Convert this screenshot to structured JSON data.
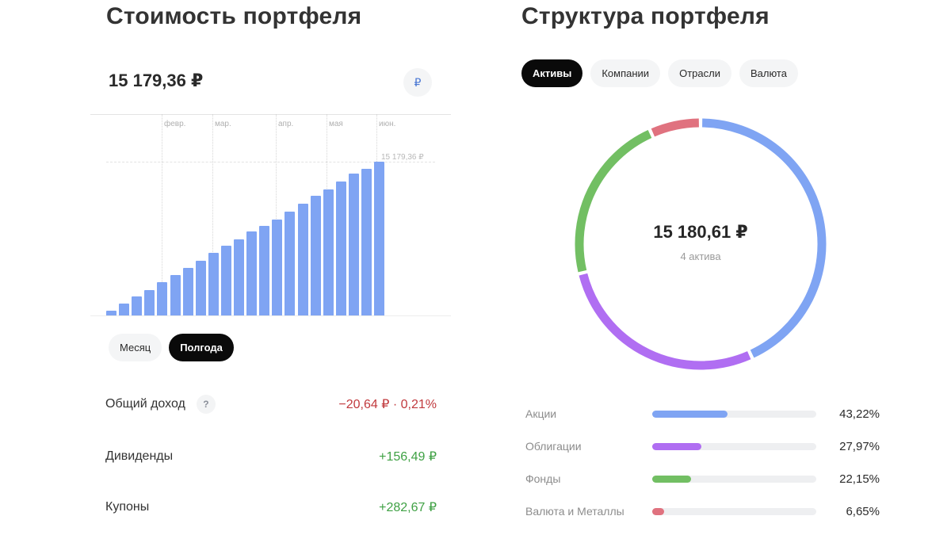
{
  "portfolio_value": {
    "title": "Стоимость портфеля",
    "total": "15 179,36 ₽",
    "currency_button": "₽",
    "chart": {
      "months": [
        "февр.",
        "мар.",
        "апр.",
        "мая",
        "июн."
      ],
      "max_label": "15 179,36 ₽"
    },
    "period_tabs": [
      {
        "label": "Месяц",
        "active": false
      },
      {
        "label": "Полгода",
        "active": true
      }
    ],
    "stats": [
      {
        "label": "Общий доход",
        "value": "−20,64 ₽ · 0,21%",
        "type": "negative",
        "has_help": true,
        "help_icon": "?"
      },
      {
        "label": "Дивиденды",
        "value": "+156,49 ₽",
        "type": "positive",
        "has_help": false
      },
      {
        "label": "Купоны",
        "value": "+282,67 ₽",
        "type": "positive",
        "has_help": false
      }
    ]
  },
  "portfolio_structure": {
    "title": "Структура портфеля",
    "tabs": [
      {
        "label": "Активы",
        "active": true
      },
      {
        "label": "Компании",
        "active": false
      },
      {
        "label": "Отрасли",
        "active": false
      },
      {
        "label": "Валюта",
        "active": false
      }
    ],
    "donut": {
      "total": "15 180,61 ₽",
      "subtitle": "4 актива"
    },
    "legend": [
      {
        "label": "Акции",
        "percent": "43,22%",
        "value": 43.22,
        "color": "#7fa4f3"
      },
      {
        "label": "Облигации",
        "percent": "27,97%",
        "value": 27.97,
        "color": "#b06ef2"
      },
      {
        "label": "Фонды",
        "percent": "22,15%",
        "value": 22.15,
        "color": "#72bf63"
      },
      {
        "label": "Валюта и Металлы",
        "percent": "6,65%",
        "value": 6.65,
        "color": "#e0727f"
      }
    ]
  },
  "chart_data": [
    {
      "type": "bar",
      "title": "Стоимость портфеля",
      "xlabel": "",
      "ylabel": "",
      "x_tick_labels": [
        "февр.",
        "мар.",
        "апр.",
        "мая",
        "июн."
      ],
      "categories": [
        "1",
        "2",
        "3",
        "4",
        "5",
        "6",
        "7",
        "8",
        "9",
        "10",
        "11",
        "12",
        "13",
        "14",
        "15",
        "16",
        "17",
        "18",
        "19",
        "20",
        "21",
        "22"
      ],
      "values": [
        470,
        1170,
        1880,
        2500,
        3290,
        3990,
        4690,
        5400,
        6180,
        6880,
        7510,
        8290,
        8840,
        9470,
        10250,
        11030,
        11810,
        12440,
        13220,
        14000,
        14470,
        15179.36
      ],
      "annotations": [
        "15 179,36 ₽"
      ],
      "ylim": [
        0,
        15179.36
      ],
      "grid": true,
      "color": "#7fa4f3"
    },
    {
      "type": "pie",
      "title": "Структура портфеля",
      "center_label": "15 180,61 ₽",
      "center_sublabel": "4 актива",
      "categories": [
        "Акции",
        "Облигации",
        "Фонды",
        "Валюта и Металлы"
      ],
      "values": [
        43.22,
        27.97,
        22.15,
        6.65
      ],
      "colors": [
        "#7fa4f3",
        "#b06ef2",
        "#72bf63",
        "#e0727f"
      ],
      "legend_position": "bottom"
    }
  ]
}
